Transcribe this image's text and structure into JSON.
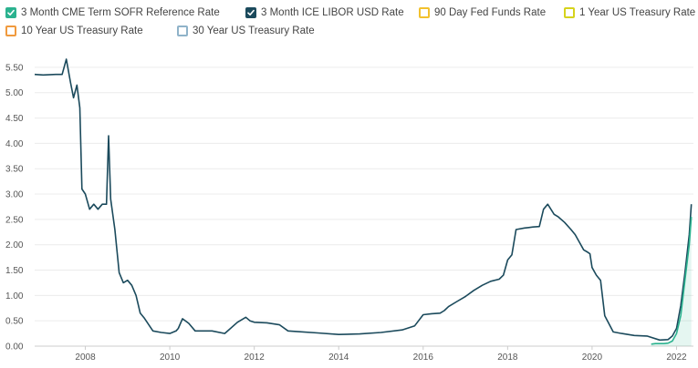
{
  "legend": [
    {
      "label": "3 Month CME Term SOFR Reference Rate",
      "color": "#2bb28f",
      "checked": true
    },
    {
      "label": "3 Month ICE LIBOR USD Rate",
      "color": "#1b4a5c",
      "checked": true
    },
    {
      "label": "90 Day Fed Funds Rate",
      "color": "#f2c12e",
      "checked": false
    },
    {
      "label": "1 Year US Treasury Rate",
      "color": "#d6d31c",
      "checked": false
    },
    {
      "label": "10 Year US Treasury Rate",
      "color": "#f09a3e",
      "checked": false
    },
    {
      "label": "30 Year US Treasury Rate",
      "color": "#8fb3c9",
      "checked": false
    }
  ],
  "chart_data": {
    "type": "line",
    "title": "",
    "xlabel": "",
    "ylabel": "",
    "xlim": [
      2006.8,
      2022.4
    ],
    "ylim": [
      0,
      5.75
    ],
    "x_ticks": [
      "2008",
      "2010",
      "2012",
      "2014",
      "2016",
      "2018",
      "2020",
      "2022"
    ],
    "y_ticks": [
      "0.00",
      "0.50",
      "1.00",
      "1.50",
      "2.00",
      "2.50",
      "3.00",
      "3.50",
      "4.00",
      "4.50",
      "5.00",
      "5.50"
    ],
    "grid": "horizontal",
    "legend_position": "top",
    "series": [
      {
        "name": "3 Month ICE LIBOR USD Rate",
        "color": "#1b4a5c",
        "fill": false,
        "x": [
          2006.8,
          2007.0,
          2007.3,
          2007.45,
          2007.55,
          2007.65,
          2007.72,
          2007.8,
          2007.87,
          2007.92,
          2008.0,
          2008.1,
          2008.2,
          2008.3,
          2008.4,
          2008.5,
          2008.55,
          2008.6,
          2008.7,
          2008.8,
          2008.9,
          2009.0,
          2009.1,
          2009.2,
          2009.3,
          2009.4,
          2009.6,
          2009.8,
          2010.0,
          2010.15,
          2010.2,
          2010.3,
          2010.45,
          2010.6,
          2011.0,
          2011.3,
          2011.6,
          2011.8,
          2011.9,
          2012.0,
          2012.3,
          2012.6,
          2012.8,
          2013.0,
          2013.5,
          2014.0,
          2014.5,
          2015.0,
          2015.5,
          2015.8,
          2016.0,
          2016.2,
          2016.4,
          2016.5,
          2016.6,
          2016.8,
          2017.0,
          2017.2,
          2017.4,
          2017.6,
          2017.8,
          2017.9,
          2018.0,
          2018.1,
          2018.2,
          2018.4,
          2018.5,
          2018.6,
          2018.75,
          2018.85,
          2018.95,
          2019.1,
          2019.2,
          2019.35,
          2019.5,
          2019.6,
          2019.7,
          2019.8,
          2019.9,
          2019.95,
          2020.0,
          2020.1,
          2020.2,
          2020.3,
          2020.5,
          2020.7,
          2021.0,
          2021.3,
          2021.6,
          2021.8,
          2021.9,
          2022.0,
          2022.1,
          2022.2,
          2022.3,
          2022.35
        ],
        "y": [
          5.36,
          5.35,
          5.36,
          5.36,
          5.66,
          5.2,
          4.9,
          5.15,
          4.7,
          3.1,
          3.0,
          2.7,
          2.8,
          2.7,
          2.8,
          2.8,
          4.15,
          2.9,
          2.3,
          1.45,
          1.25,
          1.3,
          1.2,
          1.0,
          0.65,
          0.55,
          0.3,
          0.27,
          0.25,
          0.3,
          0.35,
          0.54,
          0.45,
          0.3,
          0.3,
          0.25,
          0.47,
          0.57,
          0.5,
          0.47,
          0.46,
          0.42,
          0.3,
          0.29,
          0.26,
          0.23,
          0.24,
          0.27,
          0.32,
          0.4,
          0.62,
          0.64,
          0.65,
          0.7,
          0.78,
          0.88,
          0.98,
          1.1,
          1.2,
          1.28,
          1.32,
          1.4,
          1.7,
          1.8,
          2.3,
          2.33,
          2.34,
          2.35,
          2.36,
          2.7,
          2.8,
          2.6,
          2.55,
          2.44,
          2.3,
          2.2,
          2.05,
          1.9,
          1.85,
          1.82,
          1.55,
          1.4,
          1.3,
          0.6,
          0.28,
          0.25,
          0.21,
          0.2,
          0.12,
          0.13,
          0.2,
          0.35,
          0.8,
          1.45,
          2.2,
          2.8
        ]
      },
      {
        "name": "3 Month CME Term SOFR Reference Rate",
        "color": "#2bb28f",
        "fill": true,
        "x": [
          2021.4,
          2021.5,
          2021.6,
          2021.7,
          2021.8,
          2021.9,
          2022.0,
          2022.1,
          2022.2,
          2022.3,
          2022.35
        ],
        "y": [
          0.04,
          0.05,
          0.05,
          0.05,
          0.06,
          0.1,
          0.25,
          0.6,
          1.3,
          2.0,
          2.55
        ]
      }
    ]
  }
}
